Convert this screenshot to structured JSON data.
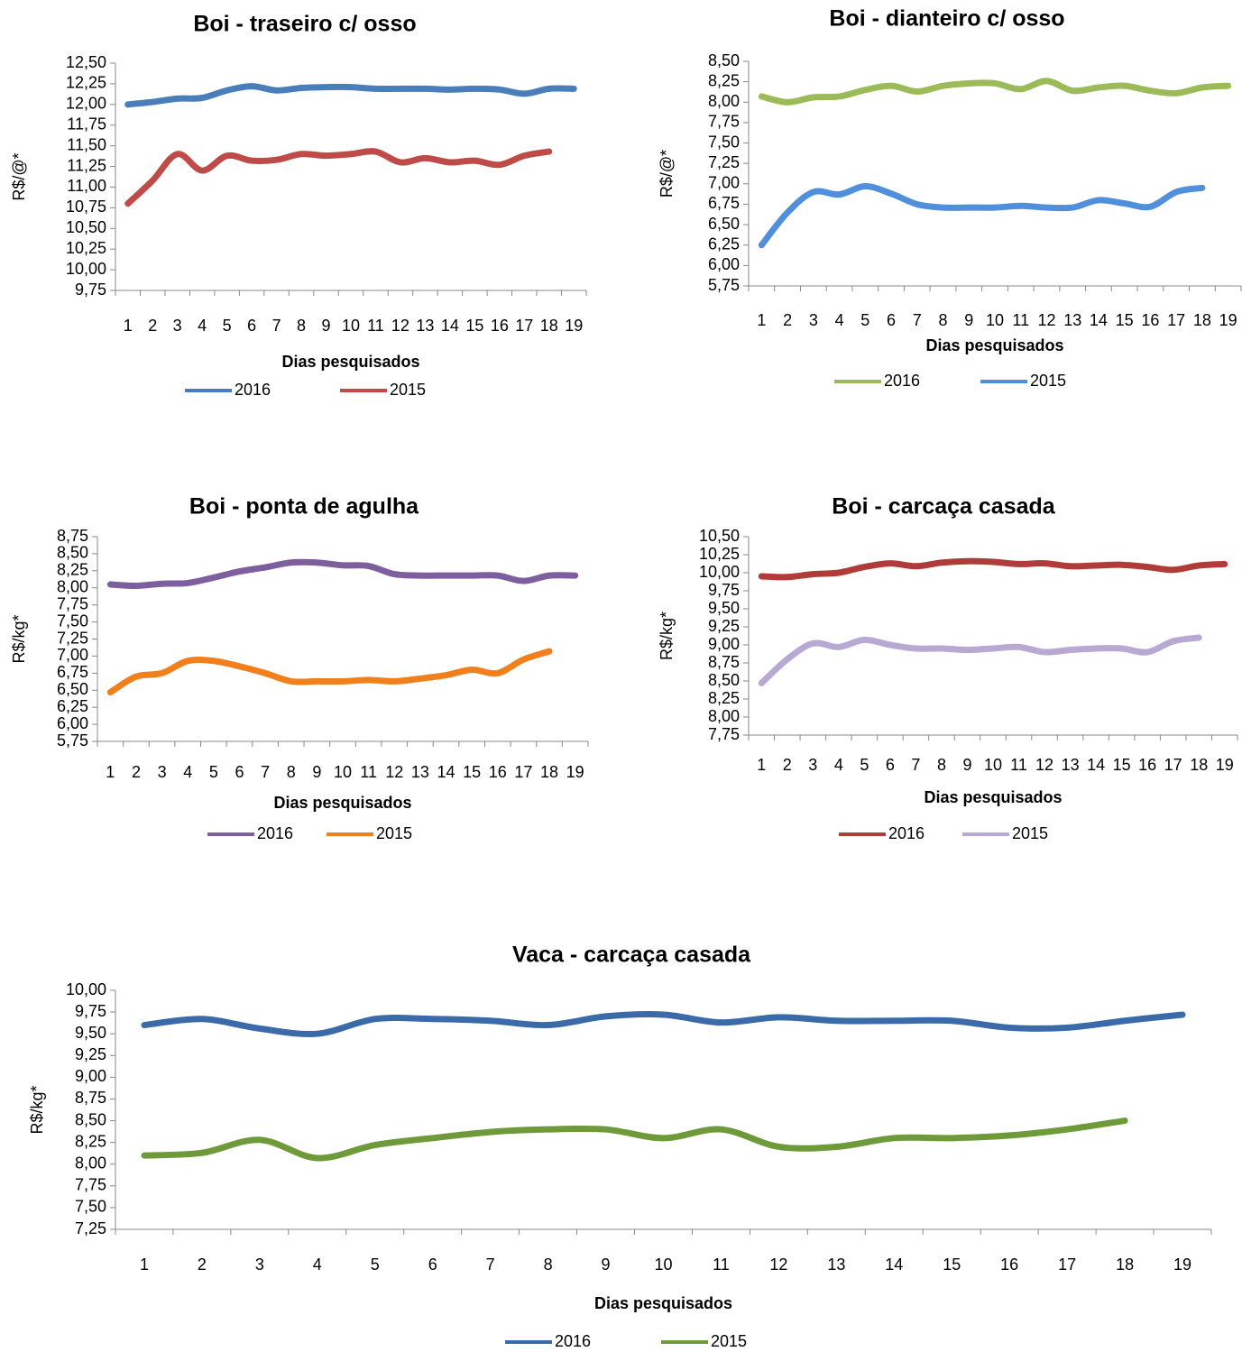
{
  "chart_data": [
    {
      "type": "line",
      "title": "Boi - traseiro c/ osso",
      "y_label": "R$/@*",
      "x_label": "Dias pesquisados",
      "categories": [
        "1",
        "2",
        "3",
        "4",
        "5",
        "6",
        "7",
        "8",
        "9",
        "10",
        "11",
        "12",
        "13",
        "14",
        "15",
        "16",
        "17",
        "18",
        "19"
      ],
      "series": [
        {
          "name": "2016",
          "color": "#4a7ebb",
          "values": [
            12.0,
            12.03,
            12.07,
            12.08,
            12.17,
            12.22,
            12.17,
            12.2,
            12.21,
            12.21,
            12.19,
            12.19,
            12.19,
            12.18,
            12.19,
            12.18,
            12.13,
            12.19,
            12.19
          ]
        },
        {
          "name": "2015",
          "color": "#be4b48",
          "values": [
            10.8,
            11.08,
            11.4,
            11.2,
            11.38,
            11.32,
            11.33,
            11.4,
            11.38,
            11.4,
            11.43,
            11.3,
            11.35,
            11.3,
            11.32,
            11.27,
            11.38,
            11.43,
            null
          ]
        }
      ],
      "ylim": [
        9.75,
        12.5
      ],
      "yticks": [
        {
          "value": 9.75,
          "label": "9,75"
        },
        {
          "value": 10,
          "label": "10,00"
        },
        {
          "value": 10.25,
          "label": "10,25"
        },
        {
          "value": 10.5,
          "label": "10,50"
        },
        {
          "value": 10.75,
          "label": "10,75"
        },
        {
          "value": 11,
          "label": "11,00"
        },
        {
          "value": 11.25,
          "label": "11,25"
        },
        {
          "value": 11.5,
          "label": "11,50"
        },
        {
          "value": 11.75,
          "label": "11,75"
        },
        {
          "value": 12,
          "label": "12,00"
        },
        {
          "value": 12.25,
          "label": "12,25"
        },
        {
          "value": 12.5,
          "label": "12,50"
        }
      ],
      "grid": false,
      "legend": "bottom"
    },
    {
      "type": "line",
      "title": "Boi - dianteiro c/ osso",
      "y_label": "R$/@*",
      "x_label": "Dias pesquisados",
      "categories": [
        "1",
        "2",
        "3",
        "4",
        "5",
        "6",
        "7",
        "8",
        "9",
        "10",
        "11",
        "12",
        "13",
        "14",
        "15",
        "16",
        "17",
        "18",
        "19"
      ],
      "series": [
        {
          "name": "2016",
          "color": "#9bbb59",
          "values": [
            8.07,
            8.0,
            8.06,
            8.07,
            8.15,
            8.2,
            8.13,
            8.2,
            8.23,
            8.23,
            8.16,
            8.26,
            8.14,
            8.18,
            8.2,
            8.14,
            8.11,
            8.18,
            8.2
          ]
        },
        {
          "name": "2015",
          "color": "#4f8fdc",
          "values": [
            6.25,
            6.65,
            6.9,
            6.87,
            6.97,
            6.88,
            6.75,
            6.71,
            6.71,
            6.71,
            6.73,
            6.71,
            6.71,
            6.8,
            6.76,
            6.72,
            6.9,
            6.95,
            null
          ]
        }
      ],
      "ylim": [
        5.75,
        8.5
      ],
      "yticks": [
        {
          "value": 5.75,
          "label": "5,75"
        },
        {
          "value": 6,
          "label": "6,00"
        },
        {
          "value": 6.25,
          "label": "6,25"
        },
        {
          "value": 6.5,
          "label": "6,50"
        },
        {
          "value": 6.75,
          "label": "6,75"
        },
        {
          "value": 7,
          "label": "7,00"
        },
        {
          "value": 7.25,
          "label": "7,25"
        },
        {
          "value": 7.5,
          "label": "7,50"
        },
        {
          "value": 7.75,
          "label": "7,75"
        },
        {
          "value": 8,
          "label": "8,00"
        },
        {
          "value": 8.25,
          "label": "8,25"
        },
        {
          "value": 8.5,
          "label": "8,50"
        }
      ],
      "grid": false,
      "legend": "bottom"
    },
    {
      "type": "line",
      "title": "Boi - ponta de agulha",
      "y_label": "R$/kg*",
      "x_label": "Dias pesquisados",
      "categories": [
        "1",
        "2",
        "3",
        "4",
        "5",
        "6",
        "7",
        "8",
        "9",
        "10",
        "11",
        "12",
        "13",
        "14",
        "15",
        "16",
        "17",
        "18",
        "19"
      ],
      "series": [
        {
          "name": "2016",
          "color": "#7d5fa0",
          "values": [
            8.05,
            8.03,
            8.06,
            8.07,
            8.15,
            8.24,
            8.3,
            8.37,
            8.37,
            8.33,
            8.32,
            8.2,
            8.18,
            8.18,
            8.18,
            8.18,
            8.1,
            8.18,
            8.18
          ]
        },
        {
          "name": "2015",
          "color": "#f07f1c",
          "values": [
            6.47,
            6.7,
            6.75,
            6.93,
            6.93,
            6.85,
            6.75,
            6.63,
            6.63,
            6.63,
            6.65,
            6.63,
            6.67,
            6.72,
            6.8,
            6.75,
            6.95,
            7.07,
            null
          ]
        }
      ],
      "ylim": [
        5.75,
        8.75
      ],
      "yticks": [
        {
          "value": 5.75,
          "label": "5,75"
        },
        {
          "value": 6,
          "label": "6,00"
        },
        {
          "value": 6.25,
          "label": "6,25"
        },
        {
          "value": 6.5,
          "label": "6,50"
        },
        {
          "value": 6.75,
          "label": "6,75"
        },
        {
          "value": 7,
          "label": "7,00"
        },
        {
          "value": 7.25,
          "label": "7,25"
        },
        {
          "value": 7.5,
          "label": "7,50"
        },
        {
          "value": 7.75,
          "label": "7,75"
        },
        {
          "value": 8,
          "label": "8,00"
        },
        {
          "value": 8.25,
          "label": "8,25"
        },
        {
          "value": 8.5,
          "label": "8,50"
        },
        {
          "value": 8.75,
          "label": "8,75"
        }
      ],
      "grid": false,
      "legend": "bottom"
    },
    {
      "type": "line",
      "title": "Boi - carcaça casada",
      "y_label": "R$/kg*",
      "x_label": "Dias pesquisados",
      "categories": [
        "1",
        "2",
        "3",
        "4",
        "5",
        "6",
        "7",
        "8",
        "9",
        "10",
        "11",
        "12",
        "13",
        "14",
        "15",
        "16",
        "17",
        "18",
        "19"
      ],
      "series": [
        {
          "name": "2016",
          "color": "#b03c3a",
          "values": [
            9.95,
            9.94,
            9.98,
            10.0,
            10.08,
            10.13,
            10.09,
            10.14,
            10.16,
            10.15,
            10.12,
            10.13,
            10.09,
            10.1,
            10.11,
            10.08,
            10.04,
            10.1,
            10.12
          ]
        },
        {
          "name": "2015",
          "color": "#b8a8d4",
          "values": [
            8.47,
            8.8,
            9.02,
            8.97,
            9.07,
            9.0,
            8.95,
            8.95,
            8.93,
            8.95,
            8.97,
            8.9,
            8.93,
            8.95,
            8.95,
            8.9,
            9.05,
            9.1,
            null
          ]
        }
      ],
      "ylim": [
        7.75,
        10.5
      ],
      "yticks": [
        {
          "value": 7.75,
          "label": "7,75"
        },
        {
          "value": 8,
          "label": "8,00"
        },
        {
          "value": 8.25,
          "label": "8,25"
        },
        {
          "value": 8.5,
          "label": "8,50"
        },
        {
          "value": 8.75,
          "label": "8,75"
        },
        {
          "value": 9,
          "label": "9,00"
        },
        {
          "value": 9.25,
          "label": "9,25"
        },
        {
          "value": 9.5,
          "label": "9,50"
        },
        {
          "value": 9.75,
          "label": "9,75"
        },
        {
          "value": 10,
          "label": "10,00"
        },
        {
          "value": 10.25,
          "label": "10,25"
        },
        {
          "value": 10.5,
          "label": "10,50"
        }
      ],
      "grid": false,
      "legend": "bottom"
    },
    {
      "type": "line",
      "title": "Vaca - carcaça casada",
      "y_label": "R$/kg*",
      "x_label": "Dias pesquisados",
      "categories": [
        "1",
        "2",
        "3",
        "4",
        "5",
        "6",
        "7",
        "8",
        "9",
        "10",
        "11",
        "12",
        "13",
        "14",
        "15",
        "16",
        "17",
        "18",
        "19"
      ],
      "series": [
        {
          "name": "2016",
          "color": "#3a6aa8",
          "values": [
            9.6,
            9.67,
            9.56,
            9.5,
            9.67,
            9.67,
            9.65,
            9.6,
            9.7,
            9.72,
            9.63,
            9.69,
            9.65,
            9.65,
            9.65,
            9.57,
            9.57,
            9.65,
            9.72
          ]
        },
        {
          "name": "2015",
          "color": "#6e9a3a",
          "values": [
            8.1,
            8.13,
            8.28,
            8.07,
            8.22,
            8.3,
            8.37,
            8.4,
            8.4,
            8.3,
            8.4,
            8.2,
            8.2,
            8.3,
            8.3,
            8.33,
            8.4,
            8.5,
            null
          ]
        }
      ],
      "ylim": [
        7.25,
        10
      ],
      "yticks": [
        {
          "value": 7.25,
          "label": "7,25"
        },
        {
          "value": 7.5,
          "label": "7,50"
        },
        {
          "value": 7.75,
          "label": "7,75"
        },
        {
          "value": 8,
          "label": "8,00"
        },
        {
          "value": 8.25,
          "label": "8,25"
        },
        {
          "value": 8.5,
          "label": "8,50"
        },
        {
          "value": 8.75,
          "label": "8,75"
        },
        {
          "value": 9,
          "label": "9,00"
        },
        {
          "value": 9.25,
          "label": "9,25"
        },
        {
          "value": 9.5,
          "label": "9,50"
        },
        {
          "value": 9.75,
          "label": "9,75"
        },
        {
          "value": 10,
          "label": "10,00"
        }
      ],
      "grid": false,
      "legend": "bottom"
    }
  ]
}
